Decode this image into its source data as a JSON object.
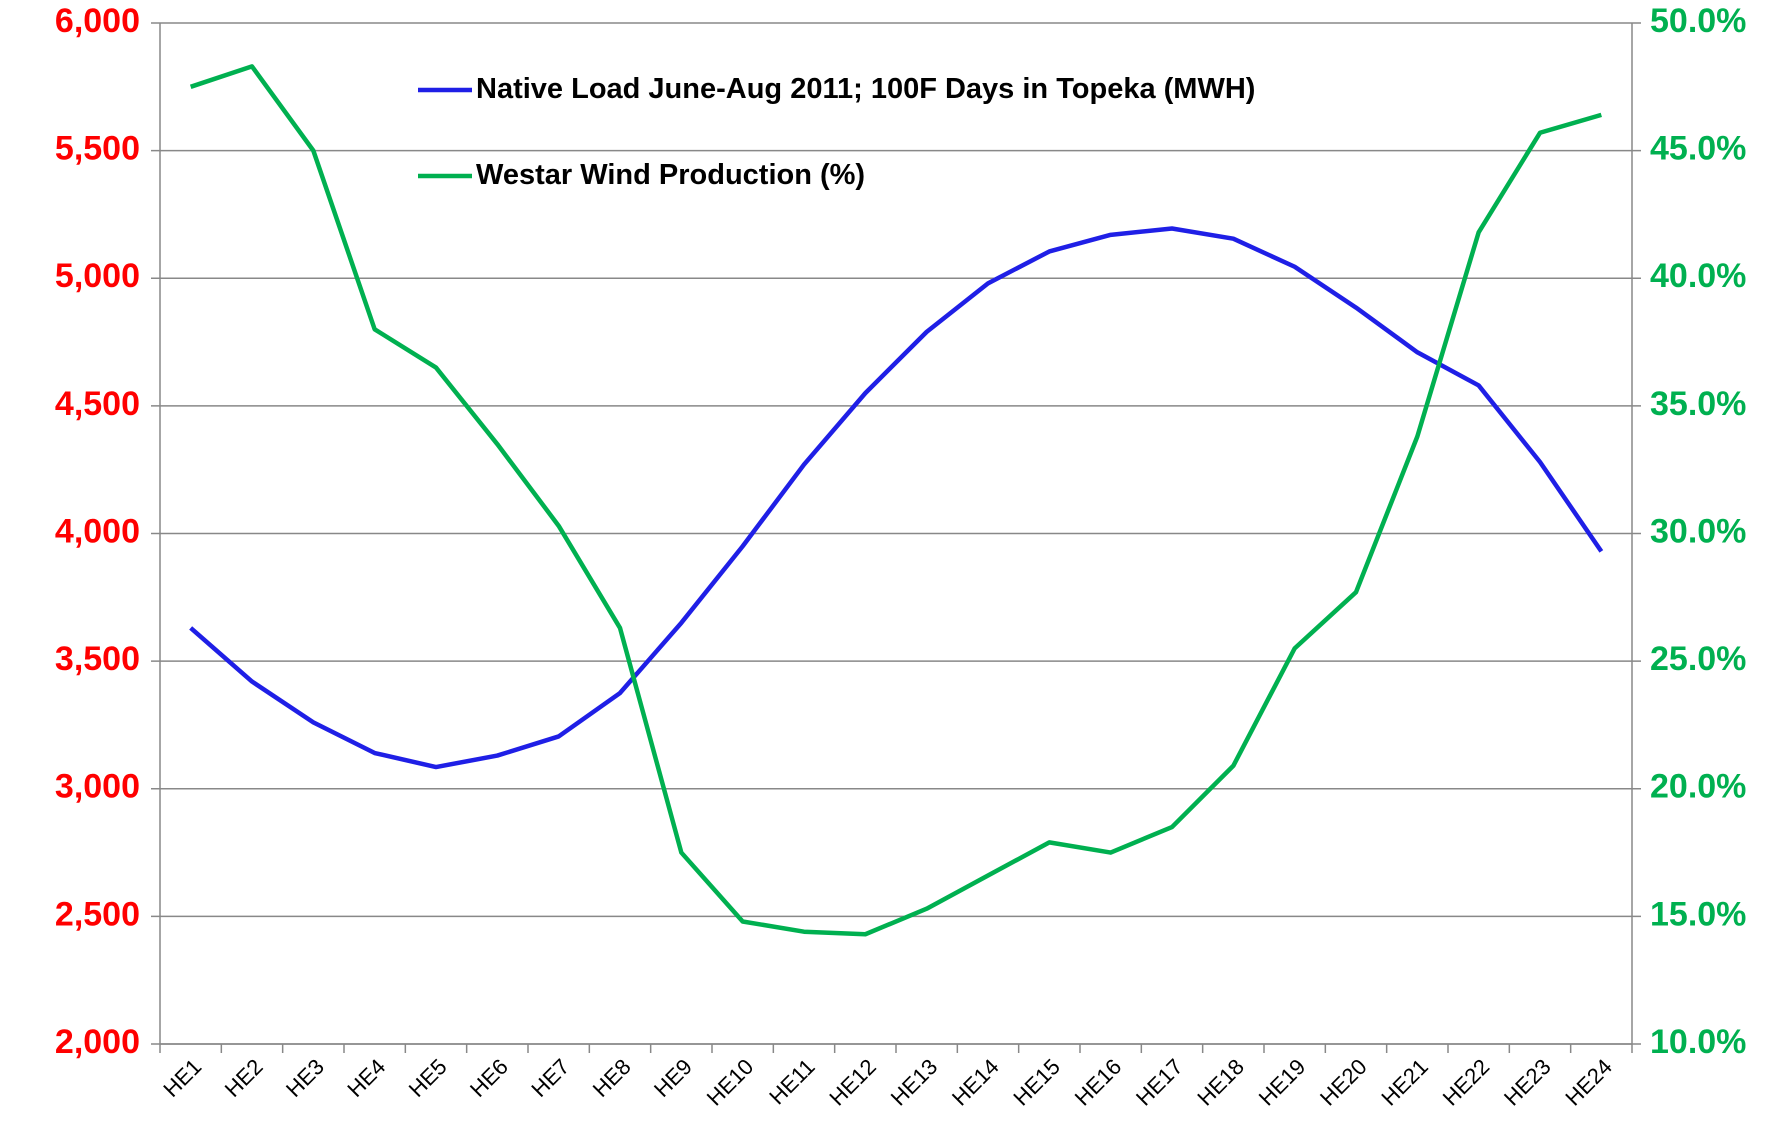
{
  "chart_data": {
    "type": "line",
    "categories": [
      "HE1",
      "HE2",
      "HE3",
      "HE4",
      "HE5",
      "HE6",
      "HE7",
      "HE8",
      "HE9",
      "HE10",
      "HE11",
      "HE12",
      "HE13",
      "HE14",
      "HE15",
      "HE16",
      "HE17",
      "HE18",
      "HE19",
      "HE20",
      "HE21",
      "HE22",
      "HE23",
      "HE24"
    ],
    "series": [
      {
        "name": "Native Load June-Aug 2011; 100F Days in Topeka (MWH)",
        "color": "#1f1fe6",
        "values": [
          3630,
          3420,
          3260,
          3140,
          3085,
          3130,
          3205,
          3375,
          3650,
          3950,
          4270,
          4550,
          4790,
          4980,
          5105,
          5170,
          5195,
          5155,
          5045,
          4885,
          4710,
          4580,
          4280,
          3930
        ]
      },
      {
        "name": "Westar Wind Production (%)",
        "color": "#00b050",
        "axis": "y2",
        "values": [
          47.5,
          48.3,
          45.0,
          38.0,
          36.5,
          33.5,
          30.3,
          26.3,
          17.5,
          14.8,
          14.4,
          14.3,
          15.3,
          16.6,
          17.9,
          17.5,
          18.5,
          20.9,
          25.5,
          27.7,
          33.8,
          41.8,
          45.7,
          46.4
        ]
      }
    ],
    "ylim": [
      2000,
      6000
    ],
    "yticks": [
      {
        "value": 2000,
        "label": "2,000"
      },
      {
        "value": 2500,
        "label": "2,500"
      },
      {
        "value": 3000,
        "label": "3,000"
      },
      {
        "value": 3500,
        "label": "3,500"
      },
      {
        "value": 4000,
        "label": "4,000"
      },
      {
        "value": 4500,
        "label": "4,500"
      },
      {
        "value": 5000,
        "label": "5,000"
      },
      {
        "value": 5500,
        "label": "5,500"
      },
      {
        "value": 6000,
        "label": "6,000"
      }
    ],
    "y2lim": [
      10,
      50
    ],
    "y2ticks": [
      {
        "value": 10,
        "label": "10.0%"
      },
      {
        "value": 15,
        "label": "15.0%"
      },
      {
        "value": 20,
        "label": "20.0%"
      },
      {
        "value": 25,
        "label": "25.0%"
      },
      {
        "value": 30,
        "label": "30.0%"
      },
      {
        "value": 35,
        "label": "35.0%"
      },
      {
        "value": 40,
        "label": "40.0%"
      },
      {
        "value": 45,
        "label": "45.0%"
      },
      {
        "value": 50,
        "label": "50.0%"
      }
    ],
    "grid": true,
    "legend": "top",
    "ytick_color": "#ff0000",
    "y2tick_color": "#00b050"
  }
}
